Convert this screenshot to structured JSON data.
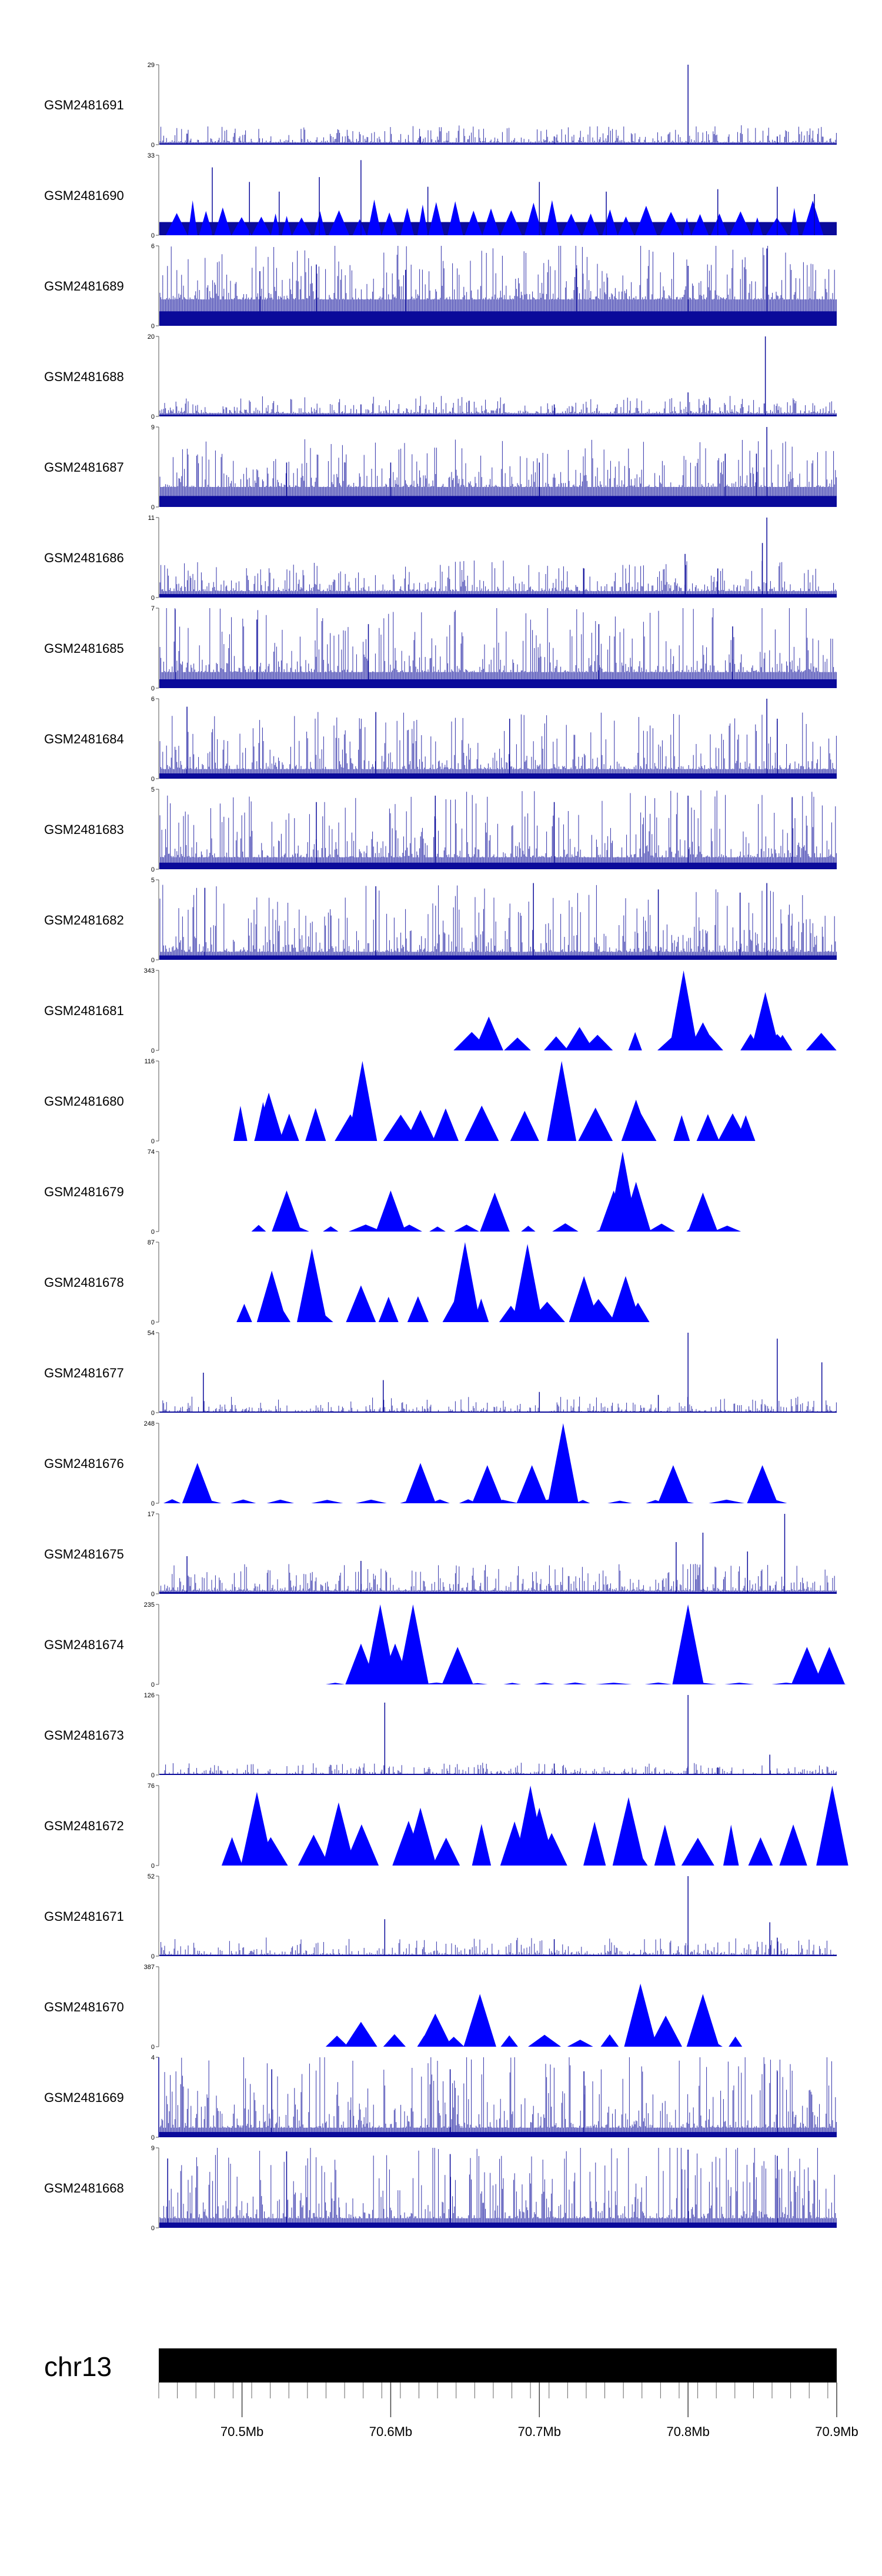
{
  "chart_data": {
    "type": "area",
    "title": "",
    "chromosome": "chr13",
    "x_unit": "Mb",
    "xlim": [
      70.444,
      70.9
    ],
    "x_ticks": [
      70.5,
      70.6,
      70.7,
      70.8,
      70.9
    ],
    "x_tick_labels": [
      "70.5Mb",
      "70.6Mb",
      "70.7Mb",
      "70.8Mb",
      "70.9Mb"
    ],
    "minor_tick_step": 0.0125,
    "colors": {
      "dense": "#0a0a9a",
      "triangle": "#0000ff",
      "axis": "#000000"
    },
    "tracks": [
      {
        "name": "GSM2481691",
        "ymax": 29,
        "style": "dense",
        "baseline": 0.03,
        "noise": 0.09,
        "peaks": [
          [
            70.8,
            29
          ],
          [
            70.463,
            4
          ],
          [
            70.62,
            3
          ],
          [
            70.71,
            3
          ],
          [
            70.86,
            3
          ]
        ]
      },
      {
        "name": "GSM2481690",
        "ymax": 33,
        "style": "dense-tri",
        "baseline": 0.3,
        "noise": 0.12,
        "peaks": [
          [
            70.48,
            28
          ],
          [
            70.505,
            22
          ],
          [
            70.525,
            18
          ],
          [
            70.552,
            24
          ],
          [
            70.58,
            31
          ],
          [
            70.625,
            20
          ],
          [
            70.7,
            22
          ],
          [
            70.745,
            18
          ],
          [
            70.82,
            19
          ],
          [
            70.86,
            20
          ],
          [
            70.885,
            17
          ]
        ]
      },
      {
        "name": "GSM2481689",
        "ymax": 6,
        "style": "dense",
        "baseline": 0.33,
        "noise": 0.3,
        "peaks": [
          [
            70.853,
            5.8
          ],
          [
            70.8,
            4.5
          ],
          [
            70.725,
            4.3
          ],
          [
            70.61,
            4.2
          ],
          [
            70.512,
            4.1
          ],
          [
            70.55,
            4.6
          ]
        ]
      },
      {
        "name": "GSM2481688",
        "ymax": 20,
        "style": "dense",
        "baseline": 0.04,
        "noise": 0.09,
        "peaks": [
          [
            70.852,
            20
          ],
          [
            70.8,
            6
          ],
          [
            70.71,
            3
          ],
          [
            70.58,
            3
          ]
        ]
      },
      {
        "name": "GSM2481687",
        "ymax": 9,
        "style": "dense",
        "baseline": 0.25,
        "noise": 0.25,
        "peaks": [
          [
            70.853,
            9
          ],
          [
            70.846,
            6
          ],
          [
            70.825,
            6
          ],
          [
            70.6,
            5
          ],
          [
            70.7,
            5
          ],
          [
            70.53,
            5
          ]
        ]
      },
      {
        "name": "GSM2481686",
        "ymax": 11,
        "style": "dense",
        "baseline": 0.08,
        "noise": 0.16,
        "peaks": [
          [
            70.853,
            11
          ],
          [
            70.85,
            7.5
          ],
          [
            70.798,
            6
          ],
          [
            70.82,
            4
          ],
          [
            70.73,
            4
          ]
        ]
      },
      {
        "name": "GSM2481685",
        "ymax": 7,
        "style": "dense",
        "baseline": 0.2,
        "noise": 0.35,
        "peaks": [
          [
            70.455,
            6.9
          ],
          [
            70.51,
            6
          ],
          [
            70.585,
            5.6
          ],
          [
            70.74,
            5.6
          ],
          [
            70.83,
            5.4
          ]
        ]
      },
      {
        "name": "GSM2481684",
        "ymax": 6,
        "style": "dense",
        "baseline": 0.12,
        "noise": 0.3,
        "peaks": [
          [
            70.853,
            6
          ],
          [
            70.86,
            4.5
          ],
          [
            70.463,
            5.4
          ],
          [
            70.59,
            5
          ],
          [
            70.68,
            4.5
          ]
        ]
      },
      {
        "name": "GSM2481683",
        "ymax": 5,
        "style": "dense",
        "baseline": 0.15,
        "noise": 0.35,
        "peaks": [
          [
            70.55,
            4.2
          ],
          [
            70.63,
            4.6
          ],
          [
            70.71,
            4.2
          ],
          [
            70.8,
            4.6
          ],
          [
            70.87,
            4.5
          ]
        ]
      },
      {
        "name": "GSM2481682",
        "ymax": 5,
        "style": "dense",
        "baseline": 0.1,
        "noise": 0.35,
        "peaks": [
          [
            70.853,
            4.8
          ],
          [
            70.59,
            4.6
          ],
          [
            70.696,
            4.8
          ],
          [
            70.475,
            4.5
          ],
          [
            70.78,
            4.4
          ],
          [
            70.835,
            4.2
          ]
        ]
      },
      {
        "name": "GSM2481681",
        "ymax": 343,
        "style": "tri",
        "fill": 0.18,
        "peaks": [
          [
            70.797,
            343
          ],
          [
            70.852,
            250
          ],
          [
            70.666,
            145
          ],
          [
            70.727,
            100
          ],
          [
            70.81,
            120
          ],
          [
            70.79,
            60
          ],
          [
            70.86,
            70
          ]
        ]
      },
      {
        "name": "GSM2481680",
        "ymax": 116,
        "style": "tri",
        "fill": 0.38,
        "peaks": [
          [
            70.581,
            116
          ],
          [
            70.715,
            116
          ],
          [
            70.518,
            70
          ],
          [
            70.765,
            60
          ],
          [
            70.62,
            45
          ],
          [
            70.83,
            40
          ]
        ]
      },
      {
        "name": "GSM2481679",
        "ymax": 74,
        "style": "tri",
        "fill": 0.08,
        "peaks": [
          [
            70.756,
            74
          ],
          [
            70.765,
            46
          ],
          [
            70.75,
            38
          ],
          [
            70.6,
            38
          ],
          [
            70.53,
            38
          ],
          [
            70.67,
            36
          ],
          [
            70.81,
            36
          ]
        ]
      },
      {
        "name": "GSM2481678",
        "ymax": 87,
        "style": "tri",
        "fill": 0.25,
        "peaks": [
          [
            70.65,
            87
          ],
          [
            70.692,
            85
          ],
          [
            70.73,
            50
          ],
          [
            70.758,
            50
          ],
          [
            70.52,
            56
          ],
          [
            70.547,
            80
          ],
          [
            70.58,
            40
          ]
        ]
      },
      {
        "name": "GSM2481677",
        "ymax": 54,
        "style": "dense",
        "baseline": 0.01,
        "noise": 0.08,
        "peaks": [
          [
            70.8,
            54
          ],
          [
            70.86,
            50
          ],
          [
            70.89,
            34
          ],
          [
            70.474,
            27
          ],
          [
            70.595,
            22
          ],
          [
            70.7,
            14
          ],
          [
            70.78,
            12
          ]
        ]
      },
      {
        "name": "GSM2481676",
        "ymax": 248,
        "style": "tri",
        "fill": 0.04,
        "peaks": [
          [
            70.716,
            248
          ],
          [
            70.62,
            125
          ],
          [
            70.47,
            125
          ],
          [
            70.79,
            118
          ],
          [
            70.85,
            118
          ],
          [
            70.665,
            118
          ],
          [
            70.695,
            118
          ]
        ]
      },
      {
        "name": "GSM2481675",
        "ymax": 17,
        "style": "dense",
        "baseline": 0.04,
        "noise": 0.14,
        "peaks": [
          [
            70.865,
            17
          ],
          [
            70.81,
            13
          ],
          [
            70.792,
            11
          ],
          [
            70.84,
            9
          ],
          [
            70.463,
            8
          ],
          [
            70.58,
            7
          ]
        ]
      },
      {
        "name": "GSM2481674",
        "ymax": 235,
        "style": "tri",
        "fill": 0.02,
        "peaks": [
          [
            70.8,
            235
          ],
          [
            70.593,
            235
          ],
          [
            70.615,
            235
          ],
          [
            70.603,
            120
          ],
          [
            70.58,
            120
          ],
          [
            70.645,
            110
          ],
          [
            70.88,
            110
          ],
          [
            70.895,
            110
          ]
        ]
      },
      {
        "name": "GSM2481673",
        "ymax": 126,
        "style": "dense",
        "baseline": 0.01,
        "noise": 0.06,
        "peaks": [
          [
            70.8,
            126
          ],
          [
            70.596,
            114
          ],
          [
            70.71,
            18
          ],
          [
            70.855,
            32
          ],
          [
            70.82,
            12
          ]
        ]
      },
      {
        "name": "GSM2481672",
        "ymax": 76,
        "style": "tri",
        "fill": 0.45,
        "peaks": [
          [
            70.694,
            76
          ],
          [
            70.51,
            70
          ],
          [
            70.897,
            76
          ],
          [
            70.565,
            60
          ],
          [
            70.62,
            55
          ],
          [
            70.76,
            65
          ],
          [
            70.7,
            55
          ]
        ]
      },
      {
        "name": "GSM2481671",
        "ymax": 52,
        "style": "dense",
        "baseline": 0.02,
        "noise": 0.09,
        "peaks": [
          [
            70.8,
            52
          ],
          [
            70.596,
            24
          ],
          [
            70.855,
            22
          ],
          [
            70.71,
            11
          ],
          [
            70.86,
            12
          ]
        ]
      },
      {
        "name": "GSM2481670",
        "ymax": 387,
        "style": "tri",
        "fill": 0.12,
        "peaks": [
          [
            70.768,
            305
          ],
          [
            70.66,
            255
          ],
          [
            70.81,
            255
          ],
          [
            70.63,
            160
          ],
          [
            70.785,
            150
          ],
          [
            70.58,
            120
          ]
        ]
      },
      {
        "name": "GSM2481669",
        "ymax": 4,
        "style": "dense",
        "baseline": 0.12,
        "noise": 0.4,
        "peaks": [
          [
            70.444,
            4
          ],
          [
            70.52,
            3.4
          ],
          [
            70.64,
            3.4
          ],
          [
            70.73,
            3.3
          ],
          [
            70.86,
            3.3
          ]
        ]
      },
      {
        "name": "GSM2481668",
        "ymax": 9,
        "style": "dense",
        "baseline": 0.12,
        "noise": 0.4,
        "peaks": [
          [
            70.53,
            8.6
          ],
          [
            70.64,
            8.3
          ],
          [
            70.8,
            8.8
          ],
          [
            70.86,
            8.1
          ],
          [
            70.45,
            7.8
          ]
        ]
      }
    ]
  }
}
